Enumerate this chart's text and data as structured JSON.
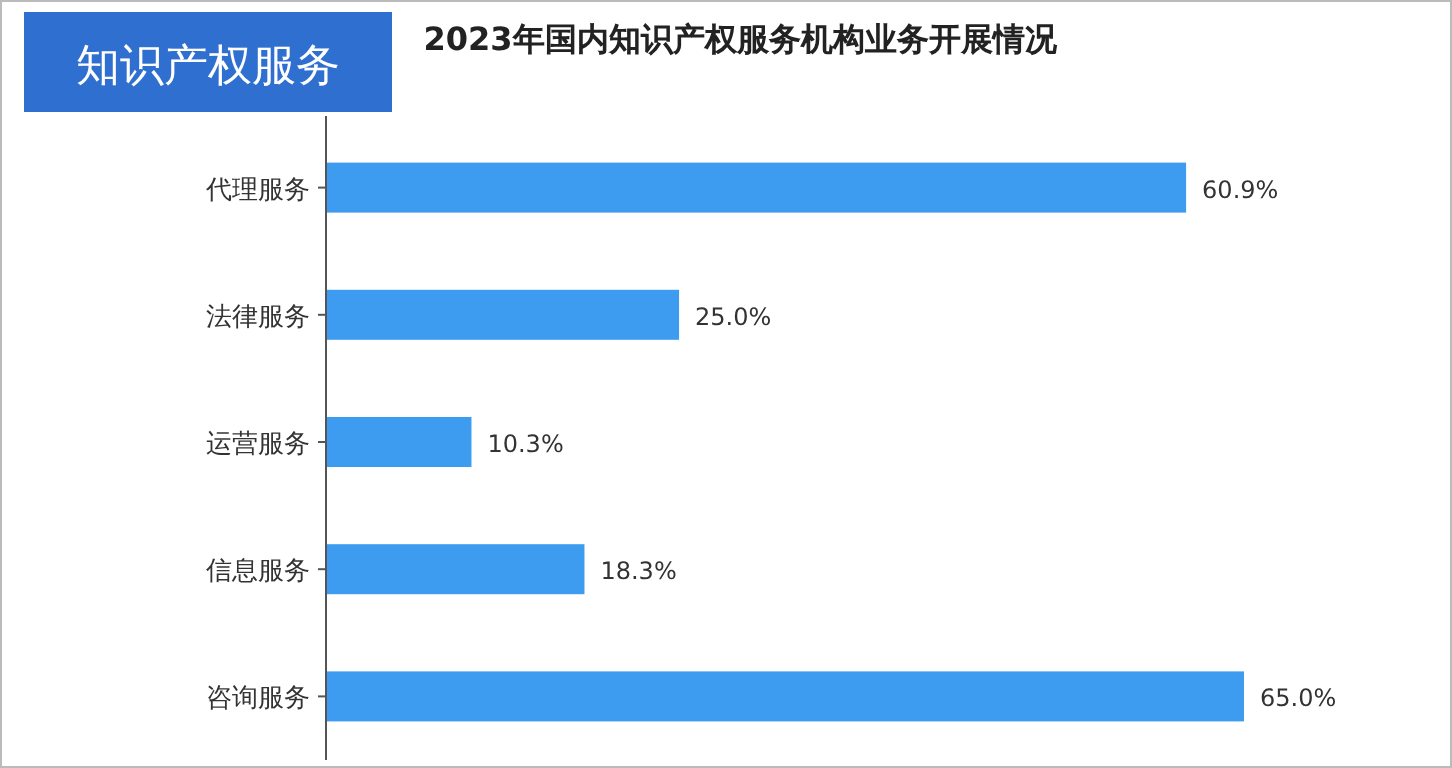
{
  "chart_data": {
    "type": "bar",
    "orientation": "horizontal",
    "title": "2023年国内知识产权服务机构业务开展情况",
    "annotations": [
      "知识产权服务"
    ],
    "categories": [
      "代理服务",
      "法律服务",
      "运营服务",
      "信息服务",
      "咨询服务"
    ],
    "values": [
      60.9,
      25.0,
      10.3,
      18.3,
      65.0
    ],
    "value_labels": [
      "60.9%",
      "25.0%",
      "10.3%",
      "18.3%",
      "65.0%"
    ],
    "color": "#3d9cf0"
  }
}
